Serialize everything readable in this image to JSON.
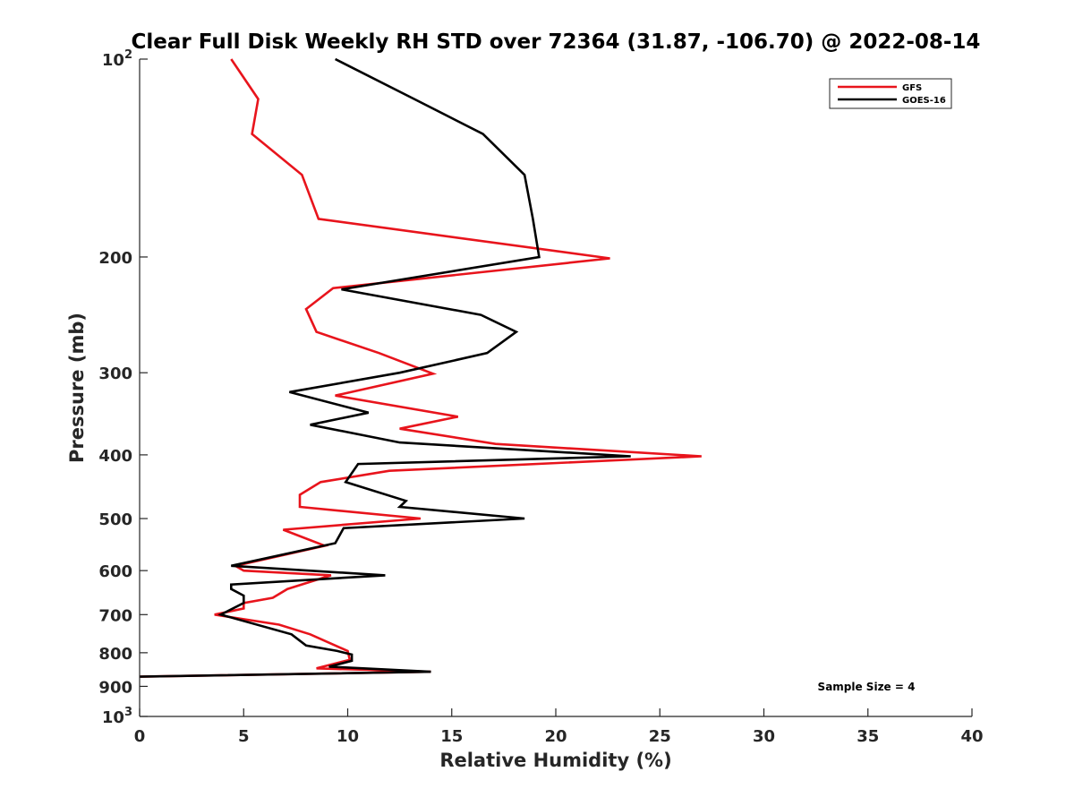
{
  "chart_data": {
    "type": "line",
    "title": "Clear Full Disk Weekly RH STD over 72364 (31.87, -106.70) @ 2022-08-14",
    "xlabel": "Relative Humidity (%)",
    "ylabel": "Pressure (mb)",
    "xlim": [
      0,
      40
    ],
    "ylim": [
      100,
      1000
    ],
    "y_scale": "log",
    "y_reversed": true,
    "x_ticks": [
      "0",
      "5",
      "10",
      "15",
      "20",
      "25",
      "30",
      "35",
      "40"
    ],
    "y_ticks": [
      {
        "value": 100,
        "base": "10",
        "exp": "2"
      },
      {
        "value": 200,
        "label": "200"
      },
      {
        "value": 300,
        "label": "300"
      },
      {
        "value": 400,
        "label": "400"
      },
      {
        "value": 500,
        "label": "500"
      },
      {
        "value": 600,
        "label": "600"
      },
      {
        "value": 700,
        "label": "700"
      },
      {
        "value": 800,
        "label": "800"
      },
      {
        "value": 900,
        "label": "900"
      },
      {
        "value": 1000,
        "base": "10",
        "exp": "3"
      }
    ],
    "grid": false,
    "legend_position": "top-right",
    "annotation": "Sample Size = 4",
    "series": [
      {
        "name": "GFS",
        "color": "#e8141c",
        "points": [
          [
            4.4,
            100
          ],
          [
            5.7,
            115
          ],
          [
            5.4,
            130
          ],
          [
            7.8,
            150
          ],
          [
            8.6,
            175
          ],
          [
            22.6,
            201
          ],
          [
            9.3,
            223
          ],
          [
            8.0,
            240
          ],
          [
            8.5,
            260
          ],
          [
            11.5,
            280
          ],
          [
            14.1,
            301
          ],
          [
            9.4,
            325
          ],
          [
            15.3,
            350
          ],
          [
            12.5,
            365
          ],
          [
            17.1,
            385
          ],
          [
            27.0,
            402
          ],
          [
            12.0,
            423
          ],
          [
            8.7,
            440
          ],
          [
            7.7,
            460
          ],
          [
            7.7,
            480
          ],
          [
            13.5,
            500
          ],
          [
            6.9,
            520
          ],
          [
            8.9,
            550
          ],
          [
            4.6,
            590
          ],
          [
            5.0,
            600
          ],
          [
            9.2,
            610
          ],
          [
            7.1,
            640
          ],
          [
            6.4,
            660
          ],
          [
            5.0,
            672
          ],
          [
            5.0,
            685
          ],
          [
            3.6,
            700
          ],
          [
            6.7,
            725
          ],
          [
            8.2,
            750
          ],
          [
            9.2,
            775
          ],
          [
            10.0,
            795
          ],
          [
            10.1,
            820
          ],
          [
            8.5,
            845
          ],
          [
            14.0,
            855
          ],
          [
            0.0,
            870
          ]
        ]
      },
      {
        "name": "GOES-16",
        "color": "#000000",
        "points": [
          [
            9.4,
            100
          ],
          [
            13.2,
            115
          ],
          [
            16.5,
            130
          ],
          [
            18.5,
            150
          ],
          [
            18.9,
            175
          ],
          [
            19.2,
            200
          ],
          [
            9.7,
            224
          ],
          [
            16.4,
            245
          ],
          [
            18.1,
            260
          ],
          [
            16.7,
            280
          ],
          [
            12.5,
            300
          ],
          [
            7.2,
            321
          ],
          [
            11.0,
            345
          ],
          [
            8.2,
            360
          ],
          [
            12.5,
            383
          ],
          [
            23.6,
            402
          ],
          [
            10.5,
            413
          ],
          [
            9.9,
            440
          ],
          [
            12.8,
            470
          ],
          [
            12.5,
            480
          ],
          [
            18.5,
            500
          ],
          [
            9.8,
            517
          ],
          [
            9.4,
            545
          ],
          [
            4.4,
            590
          ],
          [
            11.8,
            610
          ],
          [
            4.4,
            630
          ],
          [
            4.4,
            640
          ],
          [
            5.0,
            655
          ],
          [
            5.0,
            672
          ],
          [
            3.9,
            700
          ],
          [
            7.3,
            750
          ],
          [
            8.0,
            780
          ],
          [
            9.5,
            795
          ],
          [
            10.2,
            805
          ],
          [
            10.2,
            823
          ],
          [
            9.1,
            840
          ],
          [
            14.0,
            855
          ],
          [
            0.0,
            870
          ]
        ]
      }
    ]
  }
}
